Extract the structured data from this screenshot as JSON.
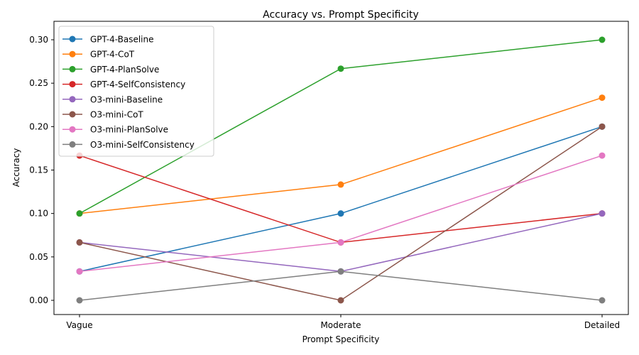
{
  "chart_data": {
    "type": "line",
    "title": "Accuracy vs. Prompt Specificity",
    "xlabel": "Prompt Specificity",
    "ylabel": "Accuracy",
    "categories": [
      "Vague",
      "Moderate",
      "Detailed"
    ],
    "ylim": [
      -0.015,
      0.315
    ],
    "yticks": [
      "0.00",
      "0.05",
      "0.10",
      "0.15",
      "0.20",
      "0.25",
      "0.30"
    ],
    "grid": false,
    "legend_position": "upper left",
    "series": [
      {
        "name": "GPT-4-Baseline",
        "color": "#1f77b4",
        "values": [
          0.0333,
          0.1,
          0.2
        ]
      },
      {
        "name": "GPT-4-CoT",
        "color": "#ff7f0e",
        "values": [
          0.1,
          0.1333,
          0.2333
        ]
      },
      {
        "name": "GPT-4-PlanSolve",
        "color": "#2ca02c",
        "values": [
          0.1,
          0.2667,
          0.3
        ]
      },
      {
        "name": "GPT-4-SelfConsistency",
        "color": "#d62728",
        "values": [
          0.1667,
          0.0667,
          0.1
        ]
      },
      {
        "name": "O3-mini-Baseline",
        "color": "#9467bd",
        "values": [
          0.0667,
          0.0333,
          0.1
        ]
      },
      {
        "name": "O3-mini-CoT",
        "color": "#8c564b",
        "values": [
          0.0667,
          0.0,
          0.2
        ]
      },
      {
        "name": "O3-mini-PlanSolve",
        "color": "#e377c2",
        "values": [
          0.0333,
          0.0667,
          0.1667
        ]
      },
      {
        "name": "O3-mini-SelfConsistency",
        "color": "#7f7f7f",
        "values": [
          0.0,
          0.0333,
          0.0
        ]
      }
    ]
  }
}
